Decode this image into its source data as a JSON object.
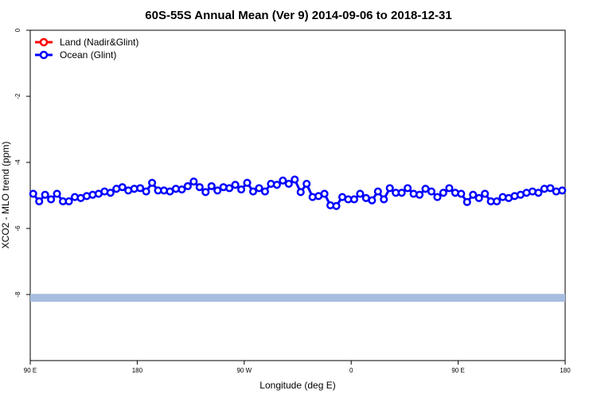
{
  "chart_data": {
    "type": "line",
    "title": "60S-55S Annual Mean (Ver 9)   2014-09-06 to 2018-12-31",
    "xlabel": "Longitude (deg E)",
    "ylabel": "XCO2 - MLO trend (ppm)",
    "x_ticks": [
      "90 E",
      "180",
      "90 W",
      "0",
      "90 E",
      "180"
    ],
    "x_tick_values": [
      90,
      180,
      270,
      360,
      450,
      540
    ],
    "xlim": [
      90,
      540
    ],
    "y_ticks": [
      "0",
      "-2",
      "-4",
      "-6",
      "-8"
    ],
    "y_tick_values": [
      0,
      -2,
      -4,
      -6,
      -8
    ],
    "ylim": [
      -10,
      0
    ],
    "grid": false,
    "legend_position": "top-left",
    "series": [
      {
        "name": "Land (Nadir&Glint)",
        "color": "#ff0000",
        "x": [],
        "values": []
      },
      {
        "name": "Ocean (Glint)",
        "color": "#0000ff",
        "x": [
          92.5,
          97.5,
          102.5,
          107.5,
          112.5,
          117.5,
          122.5,
          127.5,
          132.5,
          137.5,
          142.5,
          147.5,
          152.5,
          157.5,
          162.5,
          167.5,
          172.5,
          177.5,
          182.5,
          187.5,
          192.5,
          197.5,
          202.5,
          207.5,
          212.5,
          217.5,
          222.5,
          227.5,
          232.5,
          237.5,
          242.5,
          247.5,
          252.5,
          257.5,
          262.5,
          267.5,
          272.5,
          277.5,
          282.5,
          287.5,
          292.5,
          297.5,
          302.5,
          307.5,
          312.5,
          317.5,
          322.5,
          327.5,
          332.5,
          337.5,
          342.5,
          347.5,
          352.5,
          357.5,
          362.5,
          367.5,
          372.5,
          377.5,
          382.5,
          387.5,
          392.5,
          397.5,
          402.5,
          407.5,
          412.5,
          417.5,
          422.5,
          427.5,
          432.5,
          437.5,
          442.5,
          447.5,
          452.5,
          457.5,
          462.5,
          467.5,
          472.5,
          477.5,
          482.5,
          487.5,
          492.5,
          497.5,
          502.5,
          507.5,
          512.5,
          517.5,
          522.5,
          527.5,
          532.5,
          537.5
        ],
        "values": [
          -4.95,
          -5.18,
          -4.98,
          -5.12,
          -4.95,
          -5.18,
          -5.18,
          -5.05,
          -5.08,
          -5.02,
          -4.98,
          -4.95,
          -4.88,
          -4.92,
          -4.8,
          -4.75,
          -4.85,
          -4.8,
          -4.78,
          -4.88,
          -4.62,
          -4.85,
          -4.85,
          -4.88,
          -4.8,
          -4.82,
          -4.72,
          -4.58,
          -4.75,
          -4.9,
          -4.72,
          -4.85,
          -4.75,
          -4.78,
          -4.68,
          -4.82,
          -4.62,
          -4.88,
          -4.78,
          -4.88,
          -4.65,
          -4.68,
          -4.55,
          -4.65,
          -4.52,
          -4.9,
          -4.65,
          -5.05,
          -5.02,
          -4.95,
          -5.3,
          -5.32,
          -5.05,
          -5.12,
          -5.12,
          -4.95,
          -5.08,
          -5.15,
          -4.88,
          -5.12,
          -4.78,
          -4.92,
          -4.92,
          -4.78,
          -4.95,
          -4.98,
          -4.8,
          -4.88,
          -5.05,
          -4.92,
          -4.78,
          -4.92,
          -4.95,
          -5.2,
          -4.98,
          -5.08,
          -4.95,
          -5.18,
          -5.18,
          -5.05,
          -5.08,
          -5.02,
          -4.98,
          -4.92,
          -4.88,
          -4.92,
          -4.8,
          -4.78,
          -4.88,
          -4.85
        ]
      }
    ],
    "band": {
      "y_from": -8.22,
      "y_to": -7.98,
      "color": "#a7bde0"
    }
  }
}
